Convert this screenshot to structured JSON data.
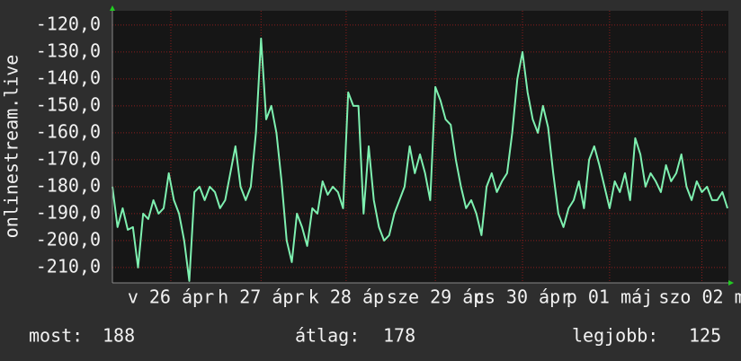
{
  "chart_data": {
    "type": "line",
    "y_label": "onlinestream.live",
    "ylim": [
      -215.7,
      -114.7
    ],
    "yticks": [
      {
        "value": -120,
        "label": "-120,0"
      },
      {
        "value": -130,
        "label": "-130,0"
      },
      {
        "value": -140,
        "label": "-140,0"
      },
      {
        "value": -150,
        "label": "-150,0"
      },
      {
        "value": -160,
        "label": "-160,0"
      },
      {
        "value": -170,
        "label": "-170,0"
      },
      {
        "value": -180,
        "label": "-180,0"
      },
      {
        "value": -190,
        "label": "-190,0"
      },
      {
        "value": -200,
        "label": "-200,0"
      },
      {
        "value": -210,
        "label": "-210,0"
      }
    ],
    "xlim": [
      0,
      120
    ],
    "xticks": [
      {
        "value": 11.4,
        "label": "v 26 ápr"
      },
      {
        "value": 29,
        "label": "h 27 ápr"
      },
      {
        "value": 45.6,
        "label": "k 28 áp"
      },
      {
        "value": 63,
        "label": "sze 29 áp"
      },
      {
        "value": 80,
        "label": "cs 30 ápr"
      },
      {
        "value": 97,
        "label": "p 01 máj"
      },
      {
        "value": 115,
        "label": "szo 02 m"
      }
    ],
    "grid": true,
    "color": "#7ef0b0",
    "values": [
      -180,
      -195,
      -188,
      -196,
      -195,
      -210,
      -190,
      -192,
      -185,
      -190,
      -188,
      -175,
      -185,
      -190,
      -200,
      -215,
      -182,
      -180,
      -185,
      -180,
      -182,
      -188,
      -185,
      -175,
      -165,
      -180,
      -185,
      -180,
      -160,
      -125,
      -155,
      -150,
      -160,
      -178,
      -200,
      -208,
      -190,
      -195,
      -202,
      -188,
      -190,
      -178,
      -183,
      -180,
      -182,
      -188,
      -145,
      -150,
      -150,
      -190,
      -165,
      -185,
      -195,
      -200,
      -198,
      -190,
      -185,
      -180,
      -165,
      -175,
      -168,
      -175,
      -185,
      -143,
      -148,
      -155,
      -157,
      -170,
      -180,
      -188,
      -185,
      -190,
      -198,
      -180,
      -175,
      -182,
      -178,
      -175,
      -160,
      -140,
      -130,
      -145,
      -155,
      -160,
      -150,
      -158,
      -175,
      -190,
      -195,
      -188,
      -185,
      -178,
      -188,
      -170,
      -165,
      -172,
      -180,
      -188,
      -178,
      -182,
      -175,
      -185,
      -162,
      -168,
      -180,
      -175,
      -178,
      -182,
      -172,
      -178,
      -175,
      -168,
      -180,
      -185,
      -178,
      -182,
      -180,
      -185,
      -185,
      -182,
      -188
    ],
    "stats": [
      {
        "label": "most:",
        "value": 188
      },
      {
        "label": "átlag:",
        "value": 178
      },
      {
        "label": "legjobb:",
        "value": 125
      }
    ]
  }
}
